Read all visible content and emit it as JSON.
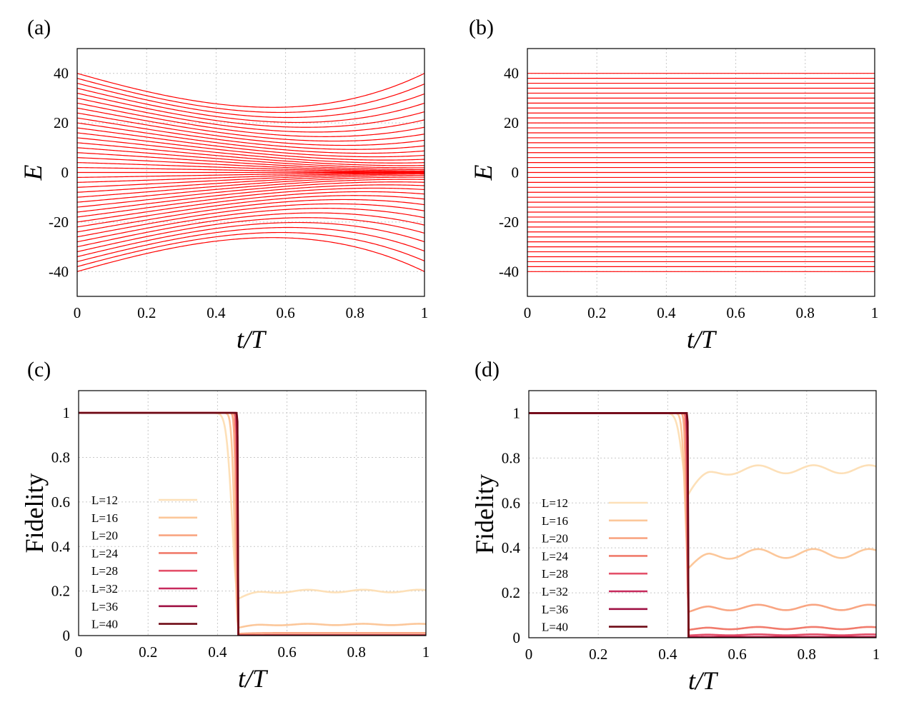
{
  "figure": {
    "panels": [
      "(a)",
      "(b)",
      "(c)",
      "(d)"
    ]
  },
  "chart_data": [
    {
      "id": "a",
      "label": "(a)",
      "type": "line",
      "xlabel": "t/T",
      "ylabel": "E",
      "xlim": [
        0,
        1
      ],
      "ylim": [
        -50,
        50
      ],
      "xticks": [
        "0",
        "0.2",
        "0.4",
        "0.6",
        "0.8",
        "1"
      ],
      "yticks": [
        "40",
        "20",
        "0",
        "-20",
        "-40"
      ],
      "grid": true,
      "levels_count": 41,
      "level_spacing_start": 2,
      "curve_shape": "levels converge linearly toward 0 at t/T=1; outer levels bend back and open to E=±40 at t/T=1",
      "line_color": "#ff0000"
    },
    {
      "id": "b",
      "label": "(b)",
      "type": "line",
      "xlabel": "t/T",
      "ylabel": "E",
      "xlim": [
        0,
        1
      ],
      "ylim": [
        -50,
        50
      ],
      "xticks": [
        "0",
        "0.2",
        "0.4",
        "0.6",
        "0.8",
        "1"
      ],
      "yticks": [
        "40",
        "20",
        "0",
        "-20",
        "-40"
      ],
      "grid": true,
      "levels_count": 41,
      "level_spacing": 2,
      "curve_shape": "flat levels E = -40 ... 40",
      "line_color": "#ff0000"
    },
    {
      "id": "c",
      "label": "(c)",
      "type": "line",
      "xlabel": "t/T",
      "ylabel": "Fidelity",
      "xlim": [
        0,
        1
      ],
      "ylim": [
        0,
        1.1
      ],
      "xticks": [
        "0",
        "0.2",
        "0.4",
        "0.6",
        "0.8",
        "1"
      ],
      "yticks": [
        "1",
        "0.8",
        "0.6",
        "0.4",
        "0.2",
        "0"
      ],
      "grid": true,
      "drop_at": 0.46,
      "legend_position": "center-left",
      "series": [
        {
          "name": "L=12",
          "color": "#fde0b8",
          "plateau": 0.2,
          "dip": 0.165,
          "osc": 0.006
        },
        {
          "name": "L=16",
          "color": "#fcc79a",
          "plateau": 0.05,
          "dip": 0.035,
          "osc": 0.003
        },
        {
          "name": "L=20",
          "color": "#f9a582",
          "plateau": 0.012,
          "dip": 0.008,
          "osc": 0.0
        },
        {
          "name": "L=24",
          "color": "#f17b6c",
          "plateau": 0.003,
          "dip": 0.002,
          "osc": 0.0
        },
        {
          "name": "L=28",
          "color": "#e4506a",
          "plateau": 0.001,
          "dip": 0.0,
          "osc": 0.0
        },
        {
          "name": "L=32",
          "color": "#c72a5d",
          "plateau": 0.0,
          "dip": 0.0,
          "osc": 0.0
        },
        {
          "name": "L=36",
          "color": "#a01345",
          "plateau": 0.0,
          "dip": 0.0,
          "osc": 0.0
        },
        {
          "name": "L=40",
          "color": "#6e0a15",
          "plateau": 0.0,
          "dip": 0.0,
          "osc": 0.0
        }
      ]
    },
    {
      "id": "d",
      "label": "(d)",
      "type": "line",
      "xlabel": "t/T",
      "ylabel": "Fidelity",
      "xlim": [
        0,
        1
      ],
      "ylim": [
        0,
        1.1
      ],
      "xticks": [
        "0",
        "0.2",
        "0.4",
        "0.6",
        "0.8",
        "1"
      ],
      "yticks": [
        "1",
        "0.8",
        "0.6",
        "0.4",
        "0.2",
        "0"
      ],
      "grid": true,
      "drop_at": 0.46,
      "legend_position": "center-left",
      "series": [
        {
          "name": "L=12",
          "color": "#fde0b8",
          "plateau": 0.75,
          "dip": 0.64,
          "osc": 0.018
        },
        {
          "name": "L=16",
          "color": "#fcc79a",
          "plateau": 0.375,
          "dip": 0.31,
          "osc": 0.02
        },
        {
          "name": "L=20",
          "color": "#f9a582",
          "plateau": 0.135,
          "dip": 0.115,
          "osc": 0.012
        },
        {
          "name": "L=24",
          "color": "#f17b6c",
          "plateau": 0.043,
          "dip": 0.035,
          "osc": 0.005
        },
        {
          "name": "L=28",
          "color": "#e4506a",
          "plateau": 0.013,
          "dip": 0.01,
          "osc": 0.002
        },
        {
          "name": "L=32",
          "color": "#c72a5d",
          "plateau": 0.004,
          "dip": 0.003,
          "osc": 0.0
        },
        {
          "name": "L=36",
          "color": "#a01345",
          "plateau": 0.001,
          "dip": 0.0,
          "osc": 0.0
        },
        {
          "name": "L=40",
          "color": "#6e0a15",
          "plateau": 0.0,
          "dip": 0.0,
          "osc": 0.0
        }
      ]
    }
  ]
}
